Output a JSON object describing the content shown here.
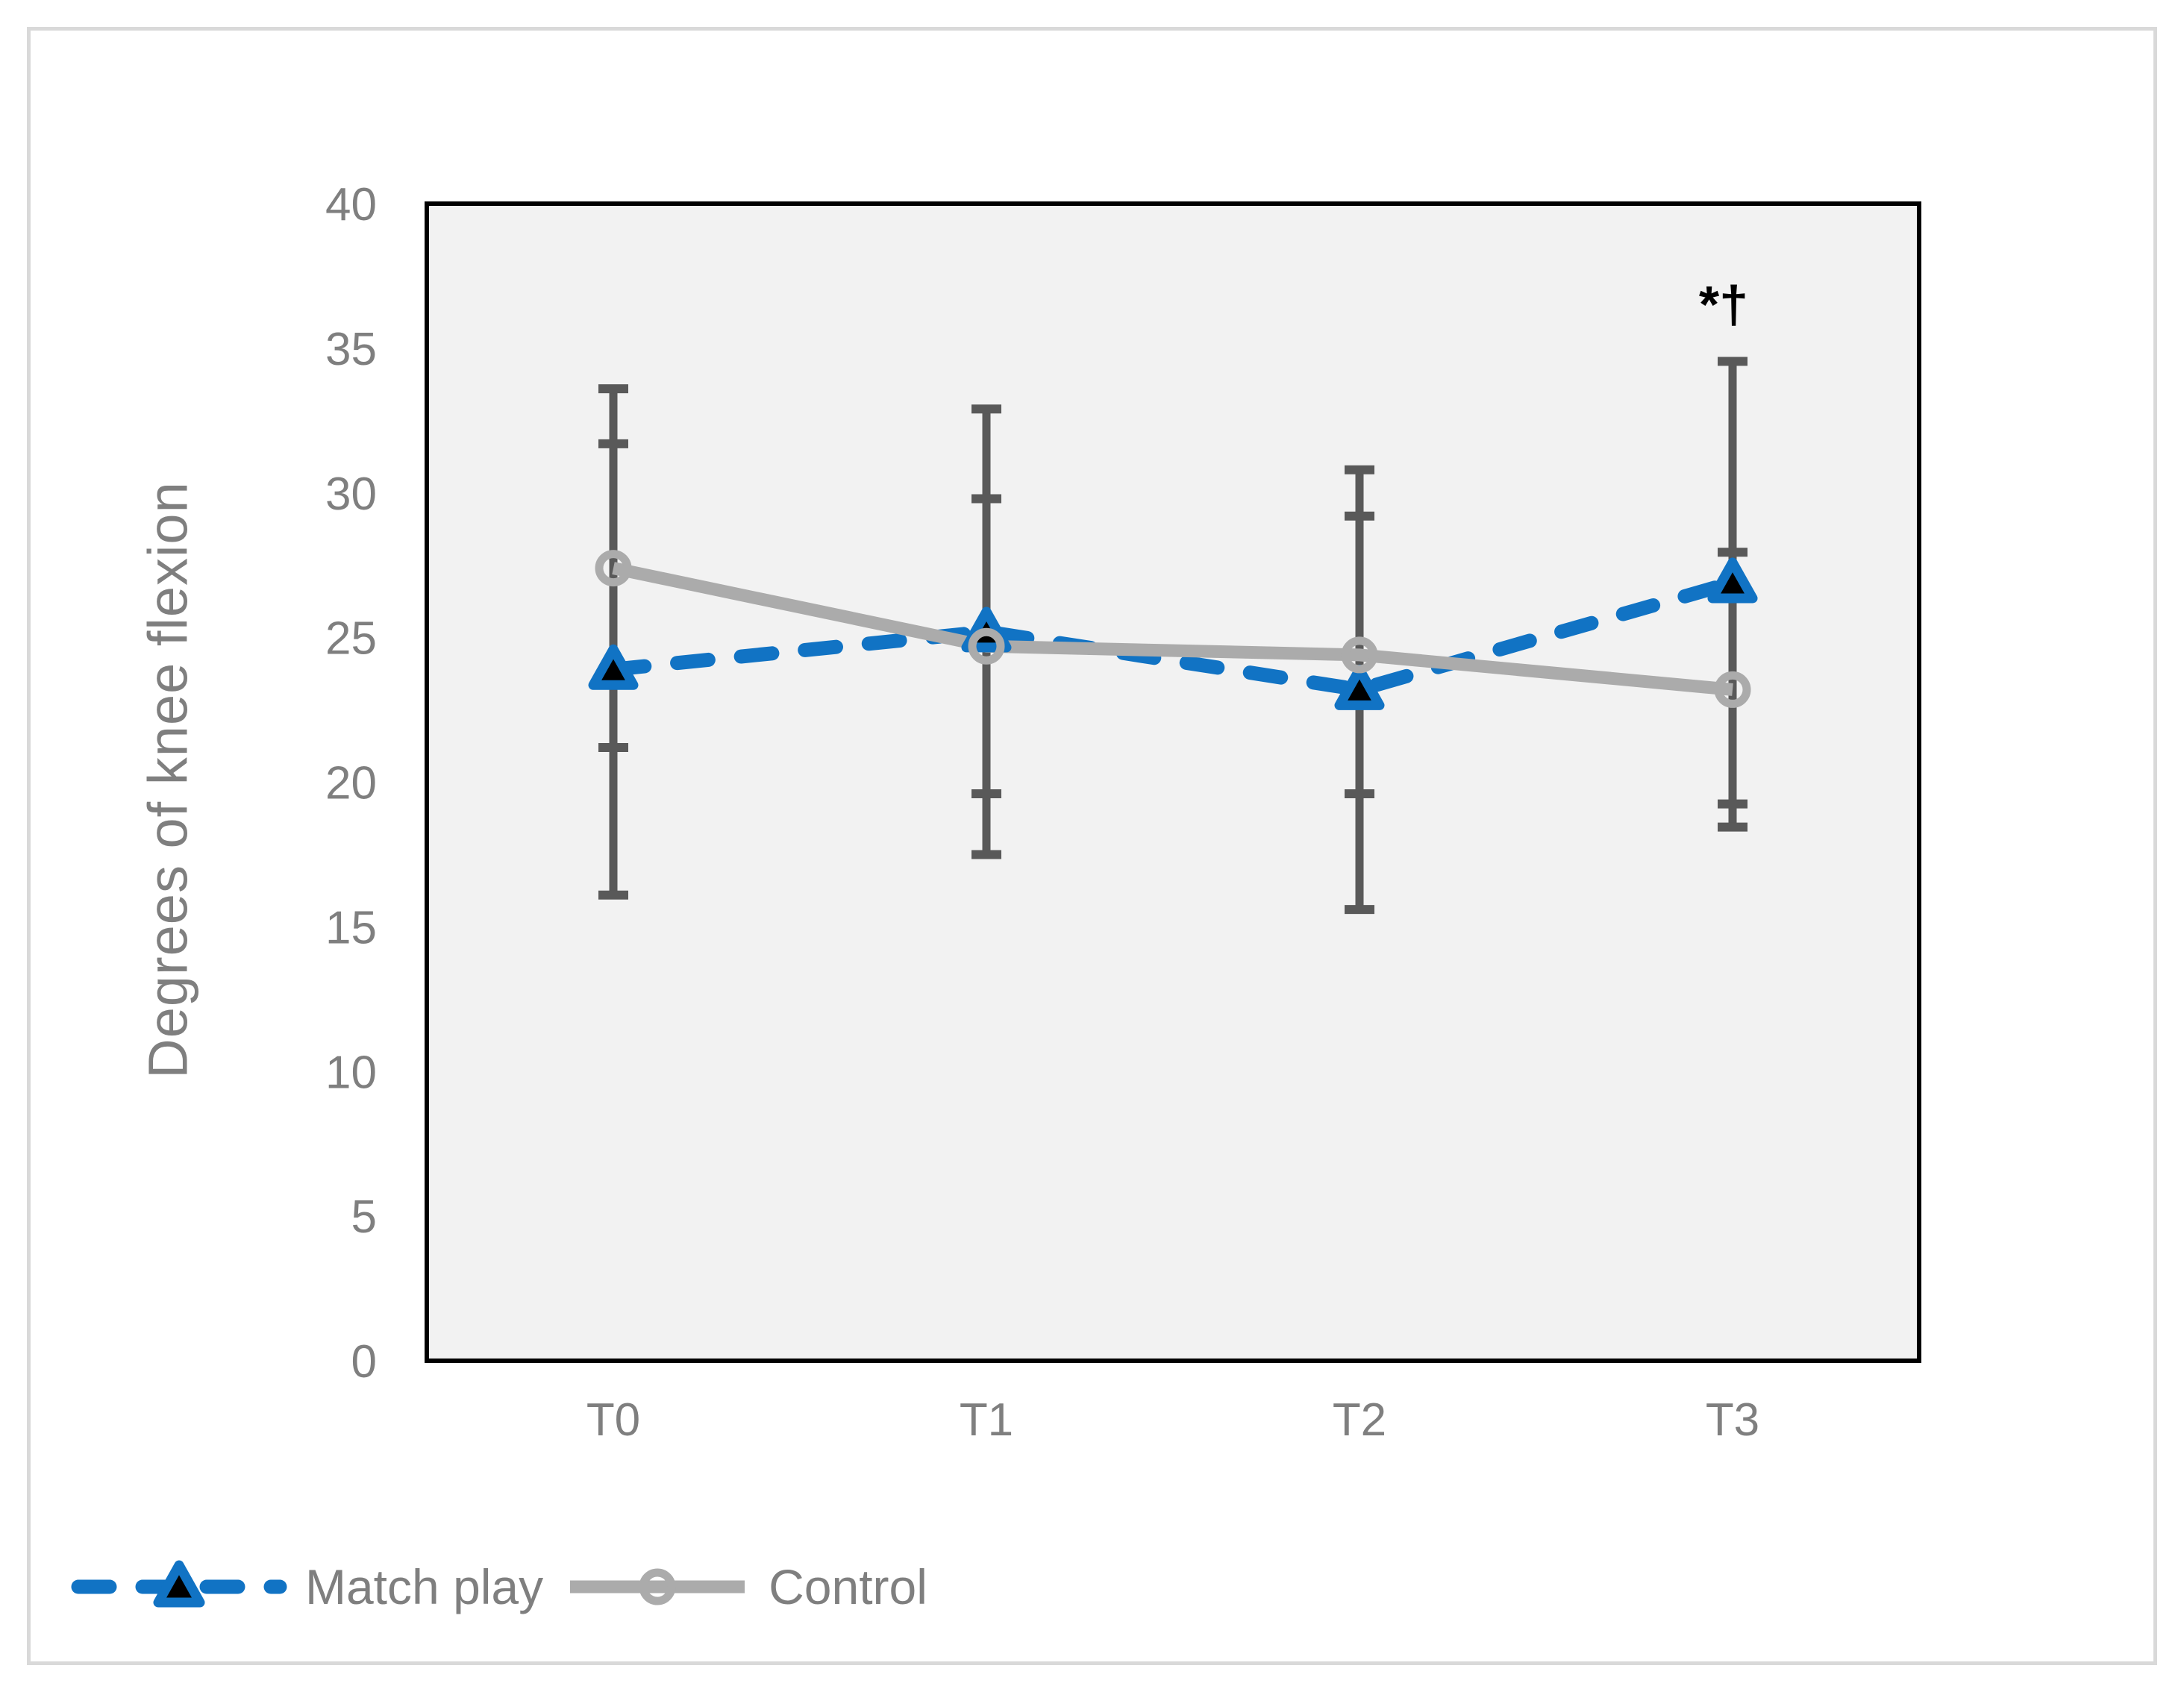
{
  "figure": {
    "background": "#ffffff",
    "outer_border_color": "#d9d9d9",
    "plot_bg": "#f2f2f2",
    "plot_border_color": "#000000",
    "tick_label_color": "#7f7f7f",
    "axis_title_color": "#7f7f7f",
    "error_bar_color": "#595959",
    "annotation_color": "#000000"
  },
  "chart_data": {
    "type": "line",
    "title": "",
    "xlabel": "",
    "ylabel": "Degrees of knee flexion",
    "categories": [
      "T0",
      "T1",
      "T2",
      "T3"
    ],
    "yticks": [
      0,
      5,
      10,
      15,
      20,
      25,
      30,
      35,
      40
    ],
    "ylim": [
      0,
      40
    ],
    "grid": false,
    "legend_position": "bottom-left",
    "series": [
      {
        "name": "Match play",
        "color": "#1173c4",
        "line_style": "dashed",
        "marker": "triangle",
        "marker_fill": "#000000",
        "values": [
          23.9,
          25.2,
          23.2,
          26.9
        ],
        "error_sd": [
          7.8,
          7.7,
          7.6,
          7.65
        ]
      },
      {
        "name": "Control",
        "color": "#ababab",
        "line_style": "solid",
        "marker": "circle-open",
        "marker_fill": "none",
        "values": [
          27.4,
          24.7,
          24.4,
          23.2
        ],
        "error_sd": [
          6.2,
          5.1,
          4.8,
          4.75
        ]
      }
    ],
    "annotations": [
      {
        "text": "*†",
        "x_category": "T3",
        "y": 36.4,
        "color": "#000000"
      }
    ]
  }
}
